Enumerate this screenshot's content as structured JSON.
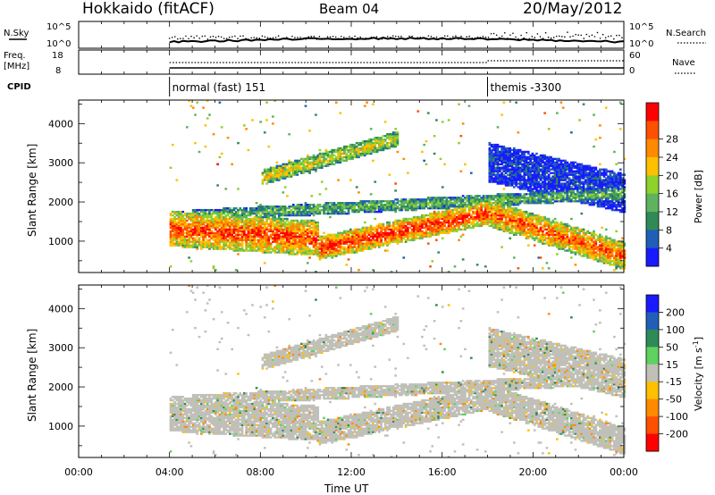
{
  "header": {
    "station": "Hokkaido (fitACF)",
    "beam": "Beam 04",
    "date": "20/May/2012"
  },
  "top_panels": {
    "nsky_label": "N.Sky",
    "nsearch_label": "N.Search",
    "nsky_ticks": [
      "10^5",
      "10^0"
    ],
    "nsearch_ticks": [
      "10^5",
      "10^0"
    ],
    "freq_label_1": "Freq.",
    "freq_label_2": "[MHz]",
    "freq_ticks": [
      "18",
      "8"
    ],
    "nave_label": "Nave",
    "nave_ticks": [
      "60",
      "0"
    ],
    "cpid_label": "CPID",
    "cpid_modes": [
      {
        "start_hour": 4,
        "label": "normal (fast) 151"
      },
      {
        "start_hour": 18,
        "label": "themis -3300"
      }
    ]
  },
  "chart_data": [
    {
      "type": "heatmap",
      "panel": "power",
      "xlabel": "Time UT",
      "ylabel": "Slant Range [km]",
      "x_ticks": [
        "00:00",
        "04:00",
        "08:00",
        "12:00",
        "16:00",
        "20:00",
        "00:00"
      ],
      "y_ticks": [
        1000,
        2000,
        3000,
        4000
      ],
      "xlim_hours": [
        0,
        24
      ],
      "ylim_km": [
        200,
        4600
      ],
      "colorbar": {
        "label": "Power [dB]",
        "ticks": [
          "4",
          "8",
          "12",
          "16",
          "20",
          "24",
          "28"
        ],
        "colors": [
          "#1a1aff",
          "#1f5fb8",
          "#2e8b57",
          "#5fb35f",
          "#8fd22a",
          "#ffc000",
          "#ff8a00",
          "#ff5000",
          "#ff0000"
        ]
      },
      "bands": [
        {
          "t0": 4,
          "t1": 10.5,
          "r0": 1300,
          "r1": 1050,
          "width": 450,
          "level": 0.9
        },
        {
          "t0": 10.5,
          "t1": 18,
          "r0": 800,
          "r1": 1700,
          "width": 300,
          "level": 0.95
        },
        {
          "t0": 18,
          "t1": 24,
          "r0": 1700,
          "r1": 600,
          "width": 350,
          "level": 0.85
        },
        {
          "t0": 4,
          "t1": 24,
          "r0": 1600,
          "r1": 2200,
          "width": 150,
          "level": 0.4
        },
        {
          "t0": 8,
          "t1": 14,
          "r0": 2600,
          "r1": 3600,
          "width": 200,
          "level": 0.6
        },
        {
          "t0": 18,
          "t1": 24,
          "r0": 3000,
          "r1": 2200,
          "width": 500,
          "level": 0.1
        }
      ]
    },
    {
      "type": "heatmap",
      "panel": "velocity",
      "xlabel": "Time UT",
      "ylabel": "Slant Range [km]",
      "x_ticks": [
        "00:00",
        "04:00",
        "08:00",
        "12:00",
        "16:00",
        "20:00",
        "00:00"
      ],
      "y_ticks": [
        1000,
        2000,
        3000,
        4000
      ],
      "xlim_hours": [
        0,
        24
      ],
      "ylim_km": [
        200,
        4600
      ],
      "colorbar": {
        "label": "Velocity [m s^-1]",
        "ticks": [
          "200",
          "100",
          "50",
          "15",
          "-15",
          "-50",
          "-100",
          "-200"
        ],
        "colors": [
          "#1a1aff",
          "#1f5fb8",
          "#2e8b57",
          "#5fd25f",
          "#c0c0b8",
          "#ffc000",
          "#ff8a00",
          "#ff5000",
          "#ff0000"
        ]
      }
    }
  ]
}
